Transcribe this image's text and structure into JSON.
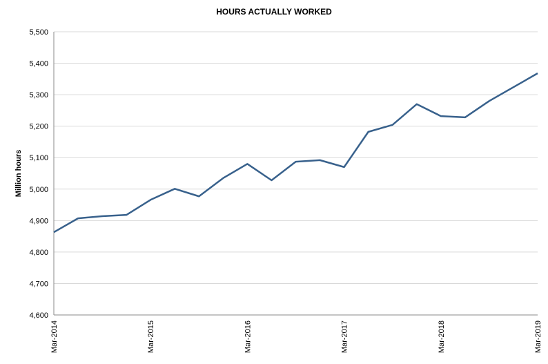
{
  "chart_data": {
    "type": "line",
    "title": "HOURS ACTUALLY WORKED",
    "y_label": "Million hours",
    "categories": [
      "Mar-2014",
      null,
      null,
      null,
      "Mar-2015",
      null,
      null,
      null,
      "Mar-2016",
      null,
      null,
      null,
      "Mar-2017",
      null,
      null,
      null,
      "Mar-2018",
      null,
      null,
      null,
      "Mar-2019"
    ],
    "series": [
      {
        "name": "Hours actually worked",
        "color": "#38618c",
        "values": [
          4863,
          4907,
          4914,
          4918,
          4966,
          5001,
          4977,
          5035,
          5080,
          5028,
          5087,
          5092,
          5070,
          5182,
          5204,
          5270,
          5232,
          5228,
          5280,
          5324,
          5368
        ]
      }
    ],
    "ylim": [
      4600,
      5500
    ],
    "yticks": [
      {
        "value": 4600,
        "label": "4,600"
      },
      {
        "value": 4700,
        "label": "4,700"
      },
      {
        "value": 4800,
        "label": "4,800"
      },
      {
        "value": 4900,
        "label": "4,900"
      },
      {
        "value": 5000,
        "label": "5,000"
      },
      {
        "value": 5100,
        "label": "5,100"
      },
      {
        "value": 5200,
        "label": "5,200"
      },
      {
        "value": 5300,
        "label": "5,300"
      },
      {
        "value": 5400,
        "label": "5,400"
      },
      {
        "value": 5500,
        "label": "5,500"
      }
    ],
    "grid": true
  }
}
